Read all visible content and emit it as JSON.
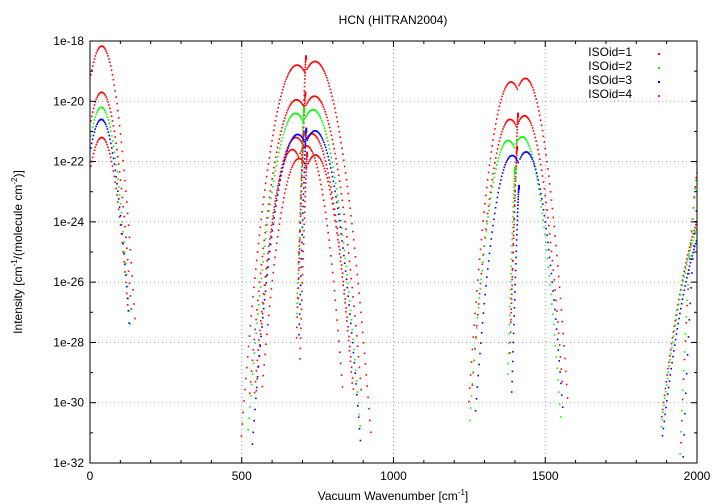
{
  "chart_data": {
    "type": "scatter",
    "title": "HCN (HITRAN2004)",
    "xlabel_parts": [
      "Vacuum Wavenumber [cm",
      "-1",
      "]"
    ],
    "ylabel_parts": [
      "Intensity [cm",
      "-1",
      "/(molecule cm",
      "-2",
      ")]"
    ],
    "xlim": [
      0,
      2000
    ],
    "ylim_log10": [
      -32,
      -18
    ],
    "yscale": "log",
    "grid": true,
    "legend_position": "top-right",
    "xticks": [
      {
        "value": 0,
        "label": "0"
      },
      {
        "value": 500,
        "label": "500"
      },
      {
        "value": 1000,
        "label": "1000"
      },
      {
        "value": 1500,
        "label": "1500"
      },
      {
        "value": 2000,
        "label": "2000"
      }
    ],
    "yticks": [
      {
        "log10": -18,
        "label": "1e-18"
      },
      {
        "log10": -20,
        "label": "1e-20"
      },
      {
        "log10": -22,
        "label": "1e-22"
      },
      {
        "log10": -24,
        "label": "1e-24"
      },
      {
        "log10": -26,
        "label": "1e-26"
      },
      {
        "log10": -28,
        "label": "1e-28"
      },
      {
        "log10": -30,
        "label": "1e-30"
      },
      {
        "log10": -32,
        "label": "1e-32"
      }
    ],
    "series": [
      {
        "name": "ISOid=1",
        "color": "#ff0000",
        "bands": [
          {
            "center": 0,
            "spacing": 2.96,
            "peak_log10": -18.17,
            "m_peak": 13,
            "k": 0.0066,
            "m_max": 50,
            "branches": "R"
          },
          {
            "center": 0,
            "spacing": 2.96,
            "peak_log10": -19.7,
            "m_peak": 13,
            "k": 0.0066,
            "m_max": 46,
            "branches": "R"
          },
          {
            "center": 0,
            "spacing": 2.96,
            "peak_log10": -21.2,
            "m_peak": 13,
            "k": 0.0066,
            "m_max": 42,
            "branches": "R"
          },
          {
            "center": 712,
            "spacing": 2.96,
            "peak_log10": -18.8,
            "m_peak": 10,
            "k": 0.0032,
            "m_max": 72,
            "branches": "PQR",
            "q_peak_log10": -18.5
          },
          {
            "center": 710,
            "spacing": 2.96,
            "peak_log10": -19.95,
            "m_peak": 10,
            "k": 0.0036,
            "m_max": 62,
            "branches": "PQR",
            "q_peak_log10": -19.7
          },
          {
            "center": 705,
            "spacing": 2.96,
            "peak_log10": -21.2,
            "m_peak": 9,
            "k": 0.004,
            "m_max": 55,
            "branches": "PQR",
            "q_peak_log10": -21.0
          },
          {
            "center": 716,
            "spacing": 2.96,
            "peak_log10": -21.9,
            "m_peak": 9,
            "k": 0.0045,
            "m_max": 50,
            "branches": "PQR",
            "q_peak_log10": -21.7
          },
          {
            "center": 690,
            "spacing": 2.96,
            "peak_log10": -21.6,
            "m_peak": 8,
            "k": 0.005,
            "m_max": 48,
            "branches": "PR"
          },
          {
            "center": 1411,
            "spacing": 2.96,
            "peak_log10": -19.36,
            "m_peak": 8,
            "k": 0.0048,
            "m_max": 55,
            "branches": "PQR",
            "q_peak_log10": -20.4
          },
          {
            "center": 1408,
            "spacing": 2.96,
            "peak_log10": -20.6,
            "m_peak": 8,
            "k": 0.005,
            "m_max": 50,
            "branches": "PQR",
            "q_peak_log10": -21.5
          },
          {
            "center": 2097,
            "spacing": 2.96,
            "peak_log10": -22.97,
            "m_peak": 10,
            "k": 0.00195,
            "m_max": 72,
            "branches": "P"
          },
          {
            "center": 2030,
            "spacing": 2.96,
            "peak_log10": -20.93,
            "m_peak": 0,
            "k": 0.01326,
            "m_max": 30,
            "branches": "P"
          }
        ]
      },
      {
        "name": "ISOid=2",
        "color": "#00ff00",
        "bands": [
          {
            "center": 0,
            "spacing": 2.88,
            "peak_log10": -20.2,
            "m_peak": 13,
            "k": 0.0066,
            "m_max": 46,
            "branches": "R"
          },
          {
            "center": 706,
            "spacing": 2.88,
            "peak_log10": -20.4,
            "m_peak": 10,
            "k": 0.0036,
            "m_max": 64,
            "branches": "PQR",
            "q_peak_log10": -20.2
          },
          {
            "center": 1401,
            "spacing": 2.88,
            "peak_log10": -21.3,
            "m_peak": 8,
            "k": 0.0048,
            "m_max": 52,
            "branches": "PQR",
            "q_peak_log10": -22.2
          },
          {
            "center": 2090,
            "spacing": 2.88,
            "peak_log10": -23.3,
            "m_peak": 10,
            "k": 0.00195,
            "m_max": 72,
            "branches": "P"
          },
          {
            "center": 2025,
            "spacing": 2.88,
            "peak_log10": -21.3,
            "m_peak": 0,
            "k": 0.01326,
            "m_max": 30,
            "branches": "P"
          }
        ]
      },
      {
        "name": "ISOid=3",
        "color": "#0000ff",
        "bands": [
          {
            "center": 0,
            "spacing": 2.87,
            "peak_log10": -20.6,
            "m_peak": 13,
            "k": 0.0066,
            "m_max": 45,
            "branches": "R"
          },
          {
            "center": 713,
            "spacing": 2.87,
            "peak_log10": -21.1,
            "m_peak": 10,
            "k": 0.0038,
            "m_max": 62,
            "branches": "PQR",
            "q_peak_log10": -20.9
          },
          {
            "center": 1414,
            "spacing": 2.87,
            "peak_log10": -21.8,
            "m_peak": 8,
            "k": 0.0048,
            "m_max": 50,
            "branches": "PQR",
            "q_peak_log10": -22.8
          },
          {
            "center": 2093,
            "spacing": 2.87,
            "peak_log10": -23.6,
            "m_peak": 10,
            "k": 0.00195,
            "m_max": 72,
            "branches": "P"
          },
          {
            "center": 2035,
            "spacing": 2.87,
            "peak_log10": -21.4,
            "m_peak": 0,
            "k": 0.01326,
            "m_max": 30,
            "branches": "P"
          }
        ]
      },
      {
        "name": "ISOid=4",
        "color": "#ff00ff",
        "bands": []
      }
    ]
  }
}
